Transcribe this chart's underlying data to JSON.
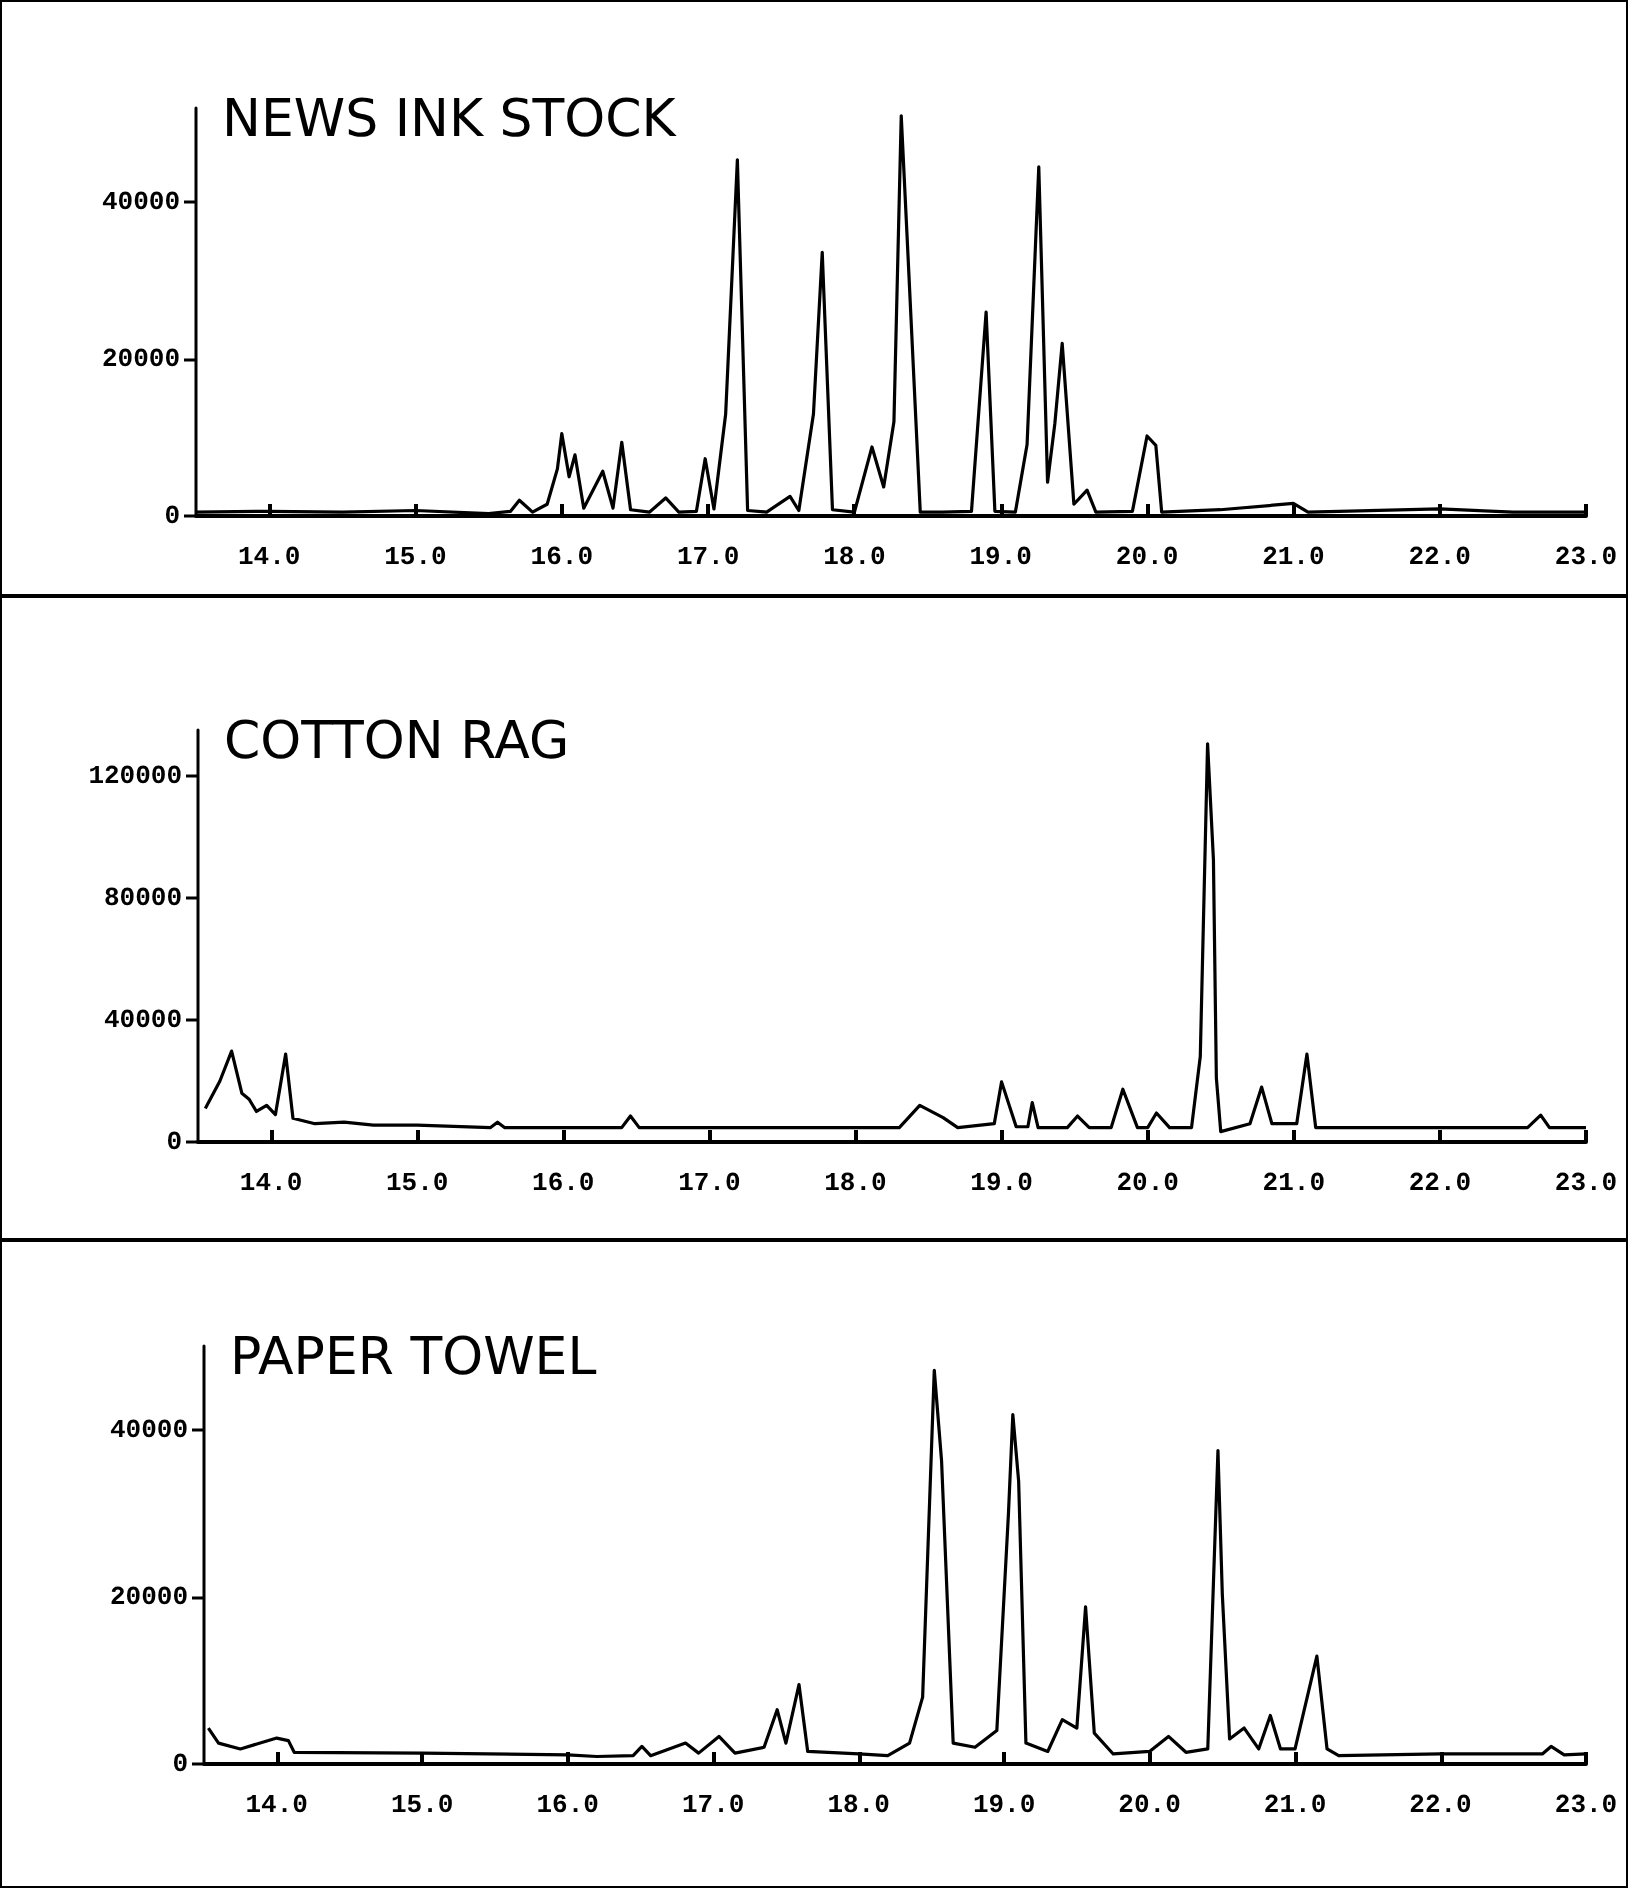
{
  "chart_data": [
    {
      "type": "line",
      "title": "NEWS INK STOCK",
      "series": [
        {
          "color": "#000000",
          "x": [
            13.5,
            14.0,
            14.5,
            15.0,
            15.5,
            15.65,
            15.71,
            15.8,
            15.9,
            15.97,
            16.0,
            16.05,
            16.09,
            16.15,
            16.28,
            16.35,
            16.41,
            16.47,
            16.6,
            16.71,
            16.8,
            16.92,
            16.98,
            17.04,
            17.12,
            17.2,
            17.27,
            17.4,
            17.56,
            17.62,
            17.72,
            17.78,
            17.85,
            18.0,
            18.12,
            18.2,
            18.27,
            18.32,
            18.36,
            18.45,
            18.6,
            18.8,
            18.9,
            18.96,
            19.1,
            19.18,
            19.26,
            19.32,
            19.37,
            19.42,
            19.5,
            19.59,
            19.65,
            19.9,
            20.0,
            20.06,
            20.1,
            20.5,
            21.0,
            21.1,
            22.0,
            22.5,
            23.0
          ],
          "values": [
            500,
            600,
            500,
            700,
            300,
            600,
            2000,
            500,
            1500,
            6000,
            10500,
            5000,
            7800,
            1000,
            5700,
            1000,
            9400,
            800,
            500,
            2300,
            500,
            600,
            7300,
            900,
            13000,
            45400,
            700,
            500,
            2500,
            700,
            13000,
            33600,
            800,
            500,
            8800,
            3700,
            12000,
            51000,
            35600,
            500,
            500,
            600,
            26000,
            600,
            500,
            9100,
            44500,
            4300,
            11800,
            22000,
            1500,
            3300,
            500,
            600,
            10200,
            9000,
            500,
            800,
            1600,
            500,
            900,
            500,
            500
          ]
        }
      ],
      "xlim": [
        13.5,
        23.0
      ],
      "xticks": [
        {
          "value": 14,
          "label": "14.0"
        },
        {
          "value": 15,
          "label": "15.0"
        },
        {
          "value": 16,
          "label": "16.0"
        },
        {
          "value": 17,
          "label": "17.0"
        },
        {
          "value": 18,
          "label": "18.0"
        },
        {
          "value": 19,
          "label": "19.0"
        },
        {
          "value": 20,
          "label": "20.0"
        },
        {
          "value": 21,
          "label": "21.0"
        },
        {
          "value": 22,
          "label": "22.0"
        },
        {
          "value": 23,
          "label": "23.0"
        }
      ],
      "ylim": [
        0,
        52000
      ],
      "yticks": [
        0,
        20000,
        40000
      ]
    },
    {
      "type": "line",
      "title": "COTTON RAG",
      "series": [
        {
          "color": "#000000",
          "x": [
            13.55,
            13.65,
            13.73,
            13.8,
            13.85,
            13.9,
            13.97,
            14.03,
            14.1,
            14.15,
            14.3,
            14.5,
            14.7,
            15.0,
            15.5,
            15.55,
            15.6,
            16.4,
            16.46,
            16.52,
            18.3,
            18.44,
            18.6,
            18.7,
            18.95,
            19.0,
            19.1,
            19.18,
            19.21,
            19.25,
            19.45,
            19.52,
            19.6,
            19.75,
            19.83,
            19.93,
            20.0,
            20.06,
            20.15,
            20.3,
            20.36,
            20.41,
            20.45,
            20.47,
            20.5,
            20.7,
            20.78,
            20.85,
            20.95,
            21.02,
            21.09,
            21.15,
            21.4,
            22.6,
            22.69,
            22.75,
            23.0
          ],
          "values": [
            11000,
            20000,
            29800,
            16000,
            14000,
            10000,
            12000,
            9000,
            28800,
            7800,
            6000,
            6500,
            5500,
            5500,
            4700,
            6500,
            4700,
            4700,
            8500,
            4700,
            4700,
            12000,
            8000,
            4700,
            6000,
            19700,
            5000,
            5000,
            12900,
            4700,
            4700,
            8500,
            4700,
            4700,
            17300,
            4700,
            4700,
            9500,
            4700,
            4700,
            28000,
            130500,
            92500,
            21000,
            3400,
            6000,
            18000,
            6000,
            6000,
            6000,
            28800,
            4700,
            4700,
            4700,
            8800,
            4700,
            4700
          ]
        }
      ],
      "xlim": [
        13.5,
        23.0
      ],
      "xticks": [
        {
          "value": 14,
          "label": "14.0"
        },
        {
          "value": 15,
          "label": "15.0"
        },
        {
          "value": 16,
          "label": "16.0"
        },
        {
          "value": 17,
          "label": "17.0"
        },
        {
          "value": 18,
          "label": "18.0"
        },
        {
          "value": 19,
          "label": "19.0"
        },
        {
          "value": 20,
          "label": "20.0"
        },
        {
          "value": 21,
          "label": "21.0"
        },
        {
          "value": 22,
          "label": "22.0"
        },
        {
          "value": 23,
          "label": "23.0"
        }
      ],
      "ylim": [
        0,
        135000
      ],
      "yticks": [
        0,
        40000,
        80000,
        120000
      ]
    },
    {
      "type": "line",
      "title": "PAPER TOWEL",
      "series": [
        {
          "color": "#000000",
          "x": [
            13.53,
            13.6,
            13.75,
            14.0,
            14.08,
            14.12,
            15.0,
            16.0,
            16.2,
            16.45,
            16.51,
            16.57,
            16.81,
            16.9,
            17.04,
            17.15,
            17.35,
            17.44,
            17.5,
            17.59,
            17.65,
            18.0,
            18.2,
            18.35,
            18.44,
            18.52,
            18.57,
            18.65,
            18.8,
            18.95,
            19.03,
            19.06,
            19.1,
            19.15,
            19.3,
            19.4,
            19.5,
            19.56,
            19.62,
            19.75,
            20.0,
            20.13,
            20.25,
            20.4,
            20.47,
            20.5,
            20.55,
            20.65,
            20.75,
            20.83,
            20.9,
            21.0,
            21.15,
            21.22,
            21.3,
            22.0,
            22.7,
            22.76,
            22.85,
            23.0
          ],
          "values": [
            4300,
            2500,
            1800,
            3100,
            2800,
            1400,
            1300,
            1100,
            900,
            1000,
            2100,
            1000,
            2500,
            1300,
            3300,
            1300,
            2000,
            6500,
            2500,
            9500,
            1500,
            1200,
            1000,
            2500,
            8000,
            47100,
            36300,
            2500,
            2000,
            4000,
            30000,
            41800,
            33800,
            2500,
            1500,
            5300,
            4300,
            18800,
            3700,
            1200,
            1500,
            3300,
            1400,
            1800,
            37500,
            20300,
            3000,
            4300,
            1800,
            5800,
            1800,
            1800,
            12900,
            1800,
            1000,
            1200,
            1200,
            2100,
            1100,
            1200
          ]
        }
      ],
      "xlim": [
        13.5,
        23.0
      ],
      "xticks": [
        {
          "value": 14,
          "label": "14.0"
        },
        {
          "value": 15,
          "label": "15.0"
        },
        {
          "value": 16,
          "label": "16.0"
        },
        {
          "value": 17,
          "label": "17.0"
        },
        {
          "value": 18,
          "label": "18.0"
        },
        {
          "value": 19,
          "label": "19.0"
        },
        {
          "value": 20,
          "label": "20.0"
        },
        {
          "value": 21,
          "label": "21.0"
        },
        {
          "value": 22,
          "label": "22.0"
        },
        {
          "value": 23,
          "label": "23.0"
        }
      ],
      "ylim": [
        0,
        50000
      ],
      "yticks": [
        0,
        20000,
        40000
      ]
    }
  ]
}
